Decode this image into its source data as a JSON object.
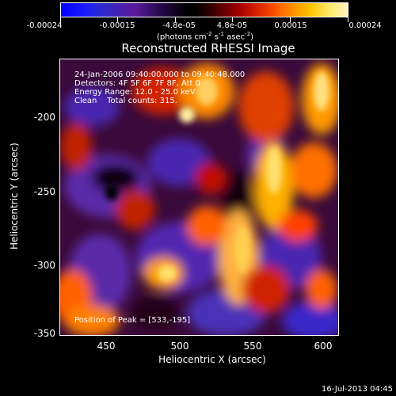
{
  "colorbar": {
    "tick_labels": [
      "-0.00024",
      "-0.00015",
      "-4.8e-05",
      "4.8e-05",
      "0.00015",
      "0.00024"
    ],
    "unit_prefix": "(photons cm",
    "unit_exp1": "-2",
    "unit_mid": " s",
    "unit_exp2": "-1",
    "unit_mid2": " asec",
    "unit_exp3": "-2",
    "unit_suffix": ")"
  },
  "title": "Reconstructed RHESSI Image",
  "annotations": {
    "line1": "24-Jan-2006 09:40:00.000 to 09:40:48.000",
    "line2": "Detectors: 4F 5F 6F 7F 8F, Att 0",
    "line3": "Energy Range: 12.0 - 25.0 keV",
    "line4": "Clean    Total counts: 315.",
    "peak": "Position of Peak = [533,-195]"
  },
  "axes": {
    "xlabel": "Heliocentric X (arcsec)",
    "ylabel": "Heliocentric Y (arcsec)",
    "xticks": [
      "450",
      "500",
      "550",
      "600"
    ],
    "yticks": [
      "-200",
      "-250",
      "-300",
      "-350"
    ]
  },
  "footer_date": "16-Jul-2013 04:45"
}
